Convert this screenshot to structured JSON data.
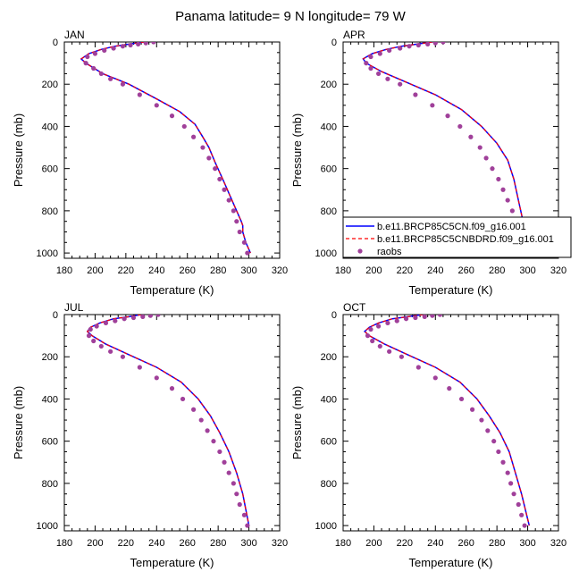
{
  "figure_title": "Panama  latitude= 9 N longitude= 79 W",
  "colors": {
    "model1": "#0000ff",
    "model2": "#ff0000",
    "obs": "#a0409a"
  },
  "legend": {
    "items": [
      {
        "label": "b.e11.BRCP85C5CN.f09_g16.001",
        "style": "solid"
      },
      {
        "label": "b.e11.BRCP85C5CNBDRD.f09_g16.001",
        "style": "dashed"
      },
      {
        "label": "raobs",
        "style": "marker"
      }
    ]
  },
  "chart_data": [
    {
      "type": "line",
      "panel_label": "JAN",
      "xlabel": "Temperature (K)",
      "ylabel": "Pressure (mb)",
      "xlim": [
        180,
        320
      ],
      "ylim": [
        0,
        1025
      ],
      "y_inverted": true,
      "xticks": [
        180,
        200,
        220,
        240,
        260,
        280,
        300,
        320
      ],
      "yticks": [
        0,
        200,
        400,
        600,
        800,
        1000
      ],
      "series": [
        {
          "name": "b.e11.BRCP85C5CN.f09_g16.001",
          "style": "solid",
          "x": [
            232,
            222,
            213,
            204,
            196,
            191,
            194,
            205,
            222,
            240,
            255,
            265,
            270,
            274,
            278,
            283,
            289,
            295,
            296,
            296,
            298,
            301
          ],
          "y": [
            0,
            10,
            20,
            35,
            55,
            80,
            100,
            150,
            200,
            270,
            330,
            390,
            450,
            500,
            570,
            650,
            750,
            850,
            870,
            900,
            950,
            1000
          ]
        },
        {
          "name": "b.e11.BRCP85C5CNBDRD.f09_g16.001",
          "style": "dashed",
          "x": [
            232,
            222,
            213,
            204,
            196,
            191,
            194,
            205,
            222,
            240,
            255,
            265,
            270,
            274,
            278,
            283,
            289,
            295,
            296,
            296,
            298,
            301
          ],
          "y": [
            0,
            10,
            20,
            35,
            55,
            80,
            100,
            150,
            200,
            270,
            330,
            390,
            450,
            500,
            570,
            650,
            750,
            850,
            870,
            900,
            950,
            1000
          ]
        },
        {
          "name": "raobs",
          "style": "marker",
          "x": [
            238,
            233,
            228,
            223,
            218,
            212,
            206,
            200,
            195,
            194,
            199,
            204,
            210,
            218,
            229,
            240,
            250,
            258,
            264,
            270,
            274,
            278,
            281,
            284,
            287,
            290,
            292,
            294,
            297,
            299
          ],
          "y": [
            0,
            5,
            10,
            15,
            20,
            30,
            40,
            55,
            70,
            100,
            125,
            150,
            175,
            200,
            250,
            300,
            350,
            400,
            450,
            500,
            550,
            600,
            650,
            700,
            750,
            800,
            850,
            900,
            950,
            1000
          ]
        }
      ]
    },
    {
      "type": "line",
      "panel_label": "APR",
      "xlabel": "Temperature (K)",
      "ylabel": "Pressure (mb)",
      "xlim": [
        180,
        320
      ],
      "ylim": [
        0,
        1025
      ],
      "y_inverted": true,
      "xticks": [
        180,
        200,
        220,
        240,
        260,
        280,
        300,
        320
      ],
      "yticks": [
        0,
        200,
        400,
        600,
        800,
        1000
      ],
      "series": [
        {
          "name": "b.e11.BRCP85C5CN.f09_g16.001",
          "style": "solid",
          "x": [
            238,
            228,
            218,
            208,
            199,
            193,
            195,
            205,
            221,
            240,
            257,
            270,
            280,
            287,
            291,
            294,
            297,
            300
          ],
          "y": [
            0,
            10,
            20,
            35,
            55,
            80,
            100,
            140,
            190,
            250,
            320,
            400,
            480,
            560,
            650,
            750,
            850,
            1000
          ]
        },
        {
          "name": "b.e11.BRCP85C5CNBDRD.f09_g16.001",
          "style": "dashed",
          "x": [
            238,
            228,
            218,
            208,
            199,
            193,
            195,
            205,
            221,
            240,
            257,
            270,
            280,
            287,
            291,
            294,
            297,
            300
          ],
          "y": [
            0,
            10,
            20,
            35,
            55,
            80,
            100,
            140,
            190,
            250,
            320,
            400,
            480,
            560,
            650,
            750,
            850,
            1000
          ]
        },
        {
          "name": "raobs",
          "style": "marker",
          "x": [
            245,
            240,
            235,
            229,
            223,
            217,
            210,
            204,
            198,
            195,
            198,
            203,
            209,
            217,
            227,
            238,
            248,
            256,
            263,
            269,
            273,
            277,
            281,
            284,
            287,
            290,
            292,
            295,
            298,
            300
          ],
          "y": [
            0,
            5,
            10,
            15,
            20,
            30,
            40,
            55,
            70,
            100,
            125,
            150,
            175,
            200,
            250,
            300,
            350,
            400,
            450,
            500,
            550,
            600,
            650,
            700,
            750,
            800,
            850,
            900,
            950,
            1000
          ]
        }
      ]
    },
    {
      "type": "line",
      "panel_label": "JUL",
      "xlabel": "Temperature (K)",
      "ylabel": "Pressure (mb)",
      "xlim": [
        180,
        320
      ],
      "ylim": [
        0,
        1025
      ],
      "y_inverted": true,
      "xticks": [
        180,
        200,
        220,
        240,
        260,
        280,
        300,
        320
      ],
      "yticks": [
        0,
        200,
        400,
        600,
        800,
        1000
      ],
      "series": [
        {
          "name": "b.e11.BRCP85C5CN.f09_g16.001",
          "style": "solid",
          "x": [
            230,
            222,
            212,
            203,
            197,
            195,
            198,
            207,
            222,
            240,
            256,
            267,
            275,
            281,
            287,
            292,
            296,
            300
          ],
          "y": [
            0,
            10,
            20,
            40,
            60,
            80,
            100,
            140,
            190,
            250,
            320,
            400,
            480,
            560,
            650,
            750,
            850,
            1000
          ]
        },
        {
          "name": "b.e11.BRCP85C5CNBDRD.f09_g16.001",
          "style": "dashed",
          "x": [
            230,
            222,
            212,
            203,
            197,
            195,
            198,
            207,
            222,
            240,
            256,
            267,
            275,
            281,
            287,
            292,
            296,
            300
          ],
          "y": [
            0,
            10,
            20,
            40,
            60,
            80,
            100,
            140,
            190,
            250,
            320,
            400,
            480,
            560,
            650,
            750,
            850,
            1000
          ]
        },
        {
          "name": "raobs",
          "style": "marker",
          "x": [
            241,
            236,
            231,
            225,
            219,
            213,
            207,
            201,
            197,
            196,
            199,
            204,
            210,
            218,
            229,
            240,
            250,
            257,
            264,
            269,
            273,
            277,
            281,
            284,
            287,
            290,
            292,
            294,
            297,
            299
          ],
          "y": [
            0,
            5,
            10,
            15,
            20,
            30,
            40,
            55,
            70,
            100,
            125,
            150,
            175,
            200,
            250,
            300,
            350,
            400,
            450,
            500,
            550,
            600,
            650,
            700,
            750,
            800,
            850,
            900,
            950,
            1000
          ]
        }
      ]
    },
    {
      "type": "line",
      "panel_label": "OCT",
      "xlabel": "Temperature (K)",
      "ylabel": "Pressure (mb)",
      "xlim": [
        180,
        320
      ],
      "ylim": [
        0,
        1025
      ],
      "y_inverted": true,
      "xticks": [
        180,
        200,
        220,
        240,
        260,
        280,
        300,
        320
      ],
      "yticks": [
        0,
        200,
        400,
        600,
        800,
        1000
      ],
      "series": [
        {
          "name": "b.e11.BRCP85C5CN.f09_g16.001",
          "style": "solid",
          "x": [
            232,
            222,
            212,
            203,
            197,
            194,
            197,
            207,
            222,
            240,
            256,
            267,
            275,
            282,
            288,
            292,
            296,
            301
          ],
          "y": [
            0,
            10,
            20,
            40,
            60,
            80,
            100,
            140,
            190,
            250,
            320,
            400,
            480,
            560,
            650,
            750,
            850,
            1000
          ]
        },
        {
          "name": "b.e11.BRCP85C5CNBDRD.f09_g16.001",
          "style": "dashed",
          "x": [
            232,
            222,
            212,
            203,
            197,
            194,
            197,
            207,
            222,
            240,
            256,
            267,
            275,
            282,
            288,
            292,
            296,
            301
          ],
          "y": [
            0,
            10,
            20,
            40,
            60,
            80,
            100,
            140,
            190,
            250,
            320,
            400,
            480,
            560,
            650,
            750,
            850,
            1000
          ]
        },
        {
          "name": "raobs",
          "style": "marker",
          "x": [
            243,
            238,
            233,
            227,
            221,
            215,
            209,
            203,
            198,
            196,
            199,
            204,
            210,
            218,
            229,
            240,
            249,
            257,
            264,
            270,
            274,
            278,
            281,
            284,
            287,
            289,
            291,
            294,
            296,
            298
          ],
          "y": [
            0,
            5,
            10,
            15,
            20,
            30,
            40,
            55,
            70,
            100,
            125,
            150,
            175,
            200,
            250,
            300,
            350,
            400,
            450,
            500,
            550,
            600,
            650,
            700,
            750,
            800,
            850,
            900,
            950,
            1000
          ]
        }
      ]
    }
  ]
}
